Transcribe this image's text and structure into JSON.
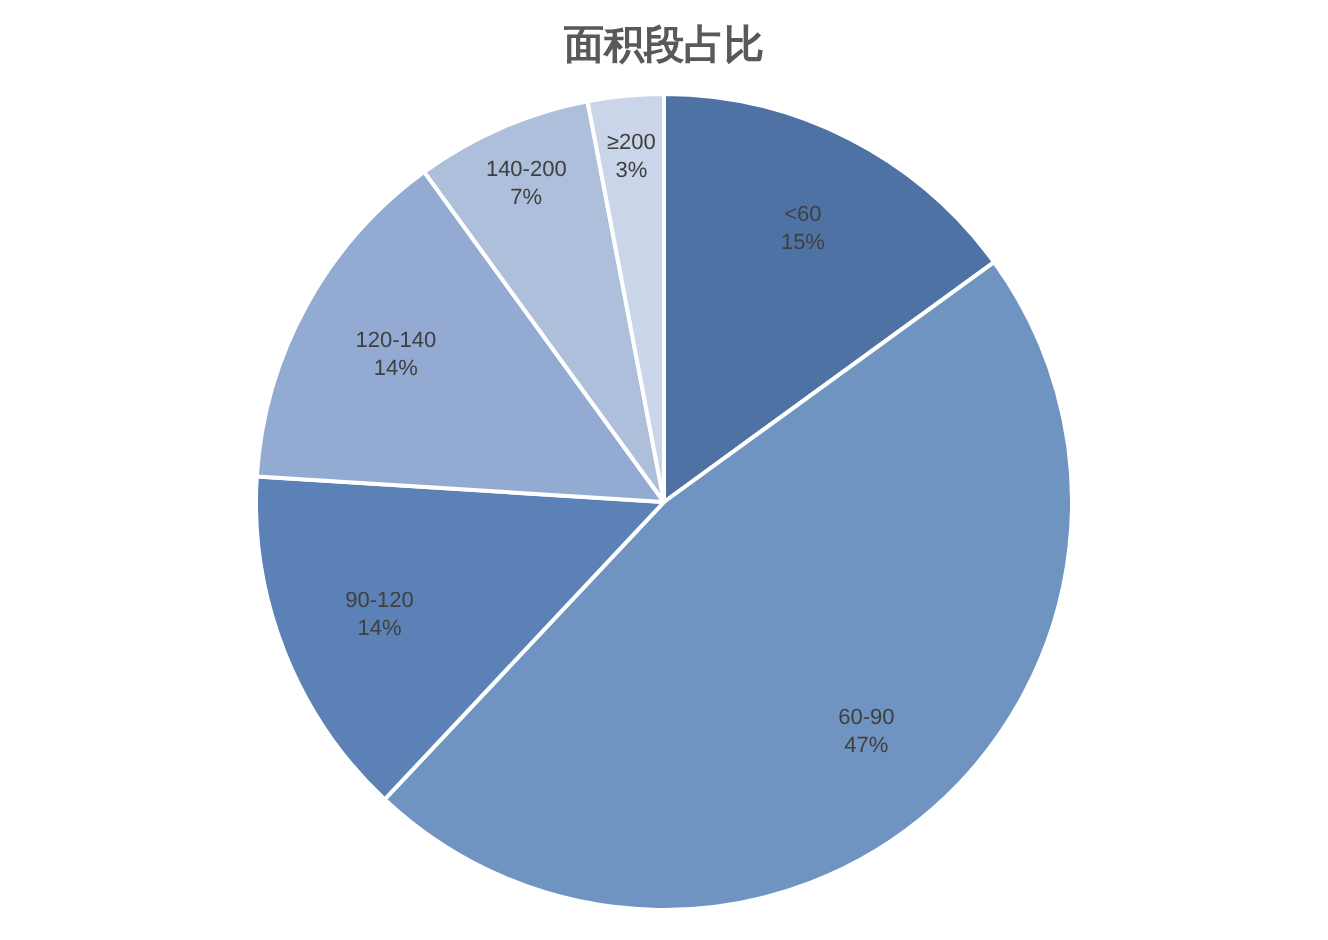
{
  "chart_data": {
    "type": "pie",
    "title": "面积段占比",
    "categories": [
      "<60",
      "60-90",
      "90-120",
      "120-140",
      "140-200",
      "≥200"
    ],
    "values": [
      15,
      47,
      14,
      14,
      7,
      3
    ],
    "value_labels": [
      "15%",
      "47%",
      "14%",
      "14%",
      "7%",
      "3%"
    ],
    "colors": [
      "#4d72a3",
      "#7094c2",
      "#5b81b6",
      "#93abd2",
      "#aebfdc",
      "#cbd5e9"
    ],
    "legend": false
  }
}
